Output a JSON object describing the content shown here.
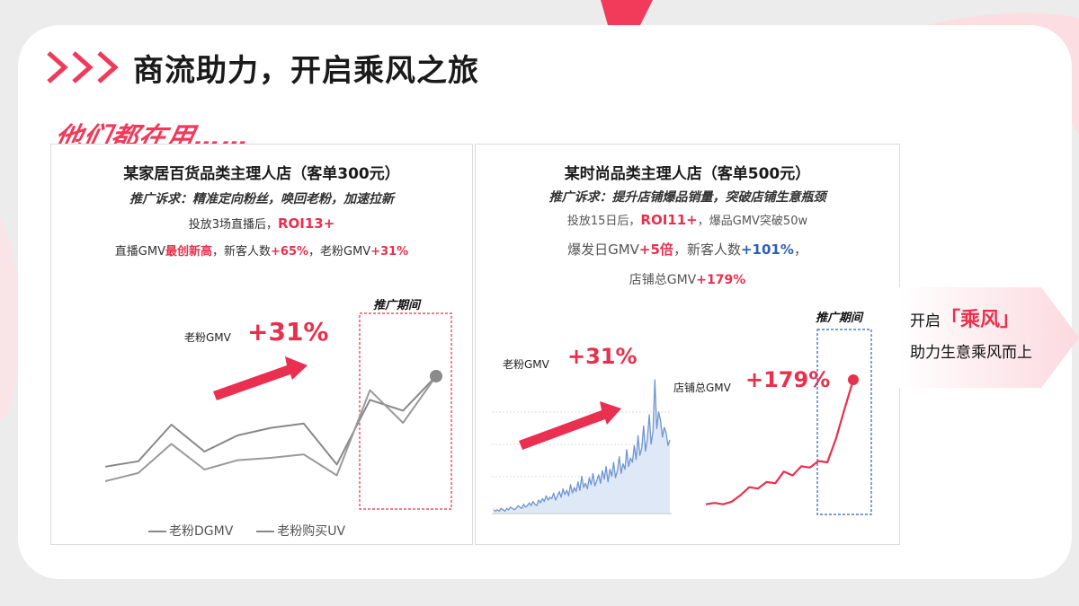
{
  "slide": {
    "title": "商流助力，开启乘风之旅",
    "tagline": "他们都在用……"
  },
  "case1": {
    "title": "某家居百货品类主理人店（客单300元）",
    "goal": "推广诉求：精准定向粉丝，唤回老粉，加速拉新",
    "line1_pre": "投放3场直播后，",
    "line1_roi": "ROI13+",
    "line2_a": "直播GMV",
    "line2_b": "最创新高",
    "line2_c": "，新客人数",
    "line2_d": "+65%",
    "line2_e": "，老粉GMV",
    "line2_f": "+31%",
    "chart_label": "老粉GMV",
    "chart_pct": "+31%",
    "promo_label": "推广期间",
    "legend": [
      "老粉DGMV",
      "老粉购买UV"
    ]
  },
  "case2": {
    "title": "某时尚品类主理人店（客单500元）",
    "goal": "推广诉求：提升店铺爆品销量，突破店铺生意瓶颈",
    "line1_pre": "投放15日后，",
    "line1_roi": "ROI11+",
    "line1_post": "，爆品GMV突破50w",
    "line2_a": "爆发日GMV",
    "line2_b": "+5倍",
    "line2_c": "，新客人数",
    "line2_d": "+101%",
    "line2_e": "，",
    "line3_a": "店铺总GMV",
    "line3_b": "+179%",
    "chart1_label": "老粉GMV",
    "chart1_pct": "+31%",
    "chart2_label": "店铺总GMV",
    "chart2_pct": "+179%",
    "promo_label": "推广期间"
  },
  "sidebar": {
    "line1_pre": "开启",
    "line1_hl": "「乘风」",
    "line2": "助力生意乘风而上"
  },
  "colors": {
    "accent": "#e8304e",
    "blue": "#2f5fb3",
    "grey": "#8a8a8a"
  },
  "chart_data": [
    {
      "type": "line",
      "legend": [
        "老粉DGMV",
        "老粉购买UV"
      ],
      "series": [
        {
          "name": "老粉DGMV",
          "values": [
            16,
            21,
            55,
            30,
            45,
            52,
            56,
            18,
            78,
            68,
            100
          ]
        },
        {
          "name": "老粉购买UV",
          "values": [
            10,
            17,
            42,
            20,
            28,
            30,
            33,
            15,
            88,
            60,
            100
          ]
        }
      ],
      "highlight_range": [
        8,
        10
      ]
    },
    {
      "type": "line",
      "series": [
        {
          "name": "",
          "values": [
            2,
            1,
            2,
            1,
            3,
            2,
            1,
            3,
            2,
            4,
            3,
            2,
            3,
            5,
            4,
            3,
            6,
            4,
            5,
            7,
            5,
            8,
            6,
            5,
            9,
            7,
            10,
            8,
            12,
            9,
            11,
            10,
            14,
            9,
            12,
            15,
            11,
            17,
            13,
            16,
            12,
            20,
            14,
            18,
            15,
            22,
            16,
            26,
            18,
            21,
            17,
            25,
            20,
            28,
            19,
            23,
            27,
            21,
            30,
            24,
            33,
            22,
            31,
            26,
            36,
            25,
            30,
            40,
            28,
            35,
            31,
            45,
            33,
            39,
            36,
            48,
            38,
            55,
            41,
            46,
            62,
            44,
            53,
            70,
            49,
            58,
            95,
            60,
            72,
            66,
            54,
            61,
            57,
            48,
            52
          ]
        }
      ]
    },
    {
      "type": "line",
      "series": [
        {
          "name": "",
          "values": [
            5,
            6,
            5,
            7,
            12,
            18,
            17,
            22,
            21,
            30,
            27,
            34,
            33,
            38,
            37,
            55,
            78,
            100
          ]
        }
      ],
      "highlight_range": [
        13,
        17
      ]
    }
  ]
}
